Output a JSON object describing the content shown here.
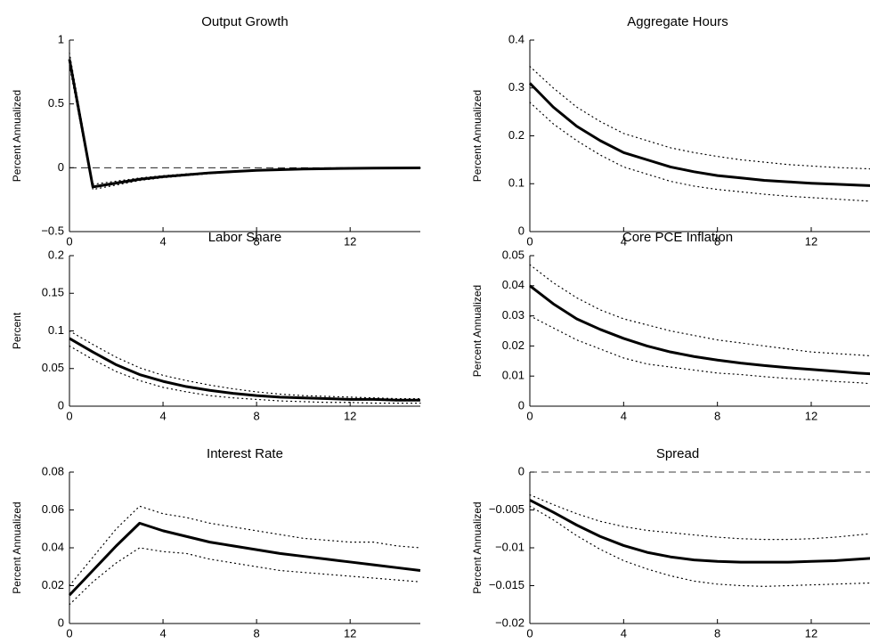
{
  "chart_data": [
    {
      "type": "line",
      "title": "Output Growth",
      "ylabel": "Percent Annualized",
      "x": [
        0,
        1,
        2,
        3,
        4,
        5,
        6,
        7,
        8,
        9,
        10,
        11,
        12,
        13,
        14,
        15
      ],
      "xlim": [
        0,
        15
      ],
      "xticks": [
        0,
        4,
        8,
        12
      ],
      "ylim": [
        -0.5,
        1
      ],
      "yticks": [
        {
          "value": -0.5,
          "label": "−0.5"
        },
        0,
        0.5,
        1
      ],
      "hlines": [
        0
      ],
      "series": [
        {
          "color": "#000000",
          "style": "dotted",
          "values": [
            0.9,
            -0.13,
            -0.105,
            -0.08,
            -0.062,
            -0.048,
            -0.036,
            -0.026,
            -0.018,
            -0.013,
            -0.009,
            -0.006,
            -0.004,
            -0.002,
            -0.001,
            0
          ]
        },
        {
          "color": "#000000",
          "style": "dotted",
          "values": [
            0.8,
            -0.17,
            -0.135,
            -0.1,
            -0.078,
            -0.062,
            -0.046,
            -0.034,
            -0.024,
            -0.018,
            -0.012,
            -0.009,
            -0.006,
            -0.004,
            -0.003,
            -0.002
          ]
        },
        {
          "color": "#000000",
          "style": "solid",
          "values": [
            0.85,
            -0.15,
            -0.12,
            -0.09,
            -0.07,
            -0.055,
            -0.04,
            -0.03,
            -0.02,
            -0.015,
            -0.01,
            -0.007,
            -0.005,
            -0.003,
            -0.002,
            -0.001
          ]
        }
      ]
    },
    {
      "type": "line",
      "title": "Aggregate Hours",
      "ylabel": "Percent Annualized",
      "x": [
        0,
        1,
        2,
        3,
        4,
        5,
        6,
        7,
        8,
        9,
        10,
        11,
        12,
        13,
        14,
        15
      ],
      "xlim": [
        0,
        15
      ],
      "xticks": [
        0,
        4,
        8,
        12
      ],
      "ylim": [
        0,
        0.4
      ],
      "yticks": [
        0,
        0.1,
        0.2,
        0.3,
        0.4
      ],
      "hlines": [],
      "series": [
        {
          "color": "#000000",
          "style": "dotted",
          "values": [
            0.345,
            0.3,
            0.26,
            0.23,
            0.205,
            0.19,
            0.175,
            0.165,
            0.157,
            0.15,
            0.145,
            0.14,
            0.137,
            0.134,
            0.132,
            0.13
          ]
        },
        {
          "color": "#000000",
          "style": "dotted",
          "values": [
            0.27,
            0.225,
            0.19,
            0.16,
            0.135,
            0.12,
            0.105,
            0.095,
            0.088,
            0.083,
            0.078,
            0.074,
            0.071,
            0.068,
            0.065,
            0.062
          ]
        },
        {
          "color": "#000000",
          "style": "solid",
          "values": [
            0.31,
            0.26,
            0.22,
            0.19,
            0.165,
            0.15,
            0.135,
            0.125,
            0.117,
            0.112,
            0.107,
            0.104,
            0.101,
            0.099,
            0.097,
            0.095
          ]
        }
      ]
    },
    {
      "type": "line",
      "title": "Labor Share",
      "ylabel": "Percent",
      "x": [
        0,
        1,
        2,
        3,
        4,
        5,
        6,
        7,
        8,
        9,
        10,
        11,
        12,
        13,
        14,
        15
      ],
      "xlim": [
        0,
        15
      ],
      "xticks": [
        0,
        4,
        8,
        12
      ],
      "ylim": [
        0,
        0.2
      ],
      "yticks": [
        0,
        0.05,
        0.1,
        0.15,
        0.2
      ],
      "hlines": [],
      "series": [
        {
          "color": "#000000",
          "style": "dotted",
          "values": [
            0.1,
            0.082,
            0.065,
            0.051,
            0.041,
            0.034,
            0.028,
            0.023,
            0.019,
            0.016,
            0.014,
            0.013,
            0.012,
            0.011,
            0.01,
            0.01
          ]
        },
        {
          "color": "#000000",
          "style": "dotted",
          "values": [
            0.08,
            0.062,
            0.046,
            0.034,
            0.025,
            0.019,
            0.014,
            0.011,
            0.009,
            0.007,
            0.006,
            0.005,
            0.005,
            0.004,
            0.004,
            0.004
          ]
        },
        {
          "color": "#000000",
          "style": "solid",
          "values": [
            0.09,
            0.072,
            0.055,
            0.042,
            0.033,
            0.026,
            0.021,
            0.017,
            0.014,
            0.012,
            0.011,
            0.01,
            0.009,
            0.009,
            0.008,
            0.008
          ]
        }
      ]
    },
    {
      "type": "line",
      "title": "Core PCE Inflation",
      "ylabel": "Percent Annualized",
      "x": [
        0,
        1,
        2,
        3,
        4,
        5,
        6,
        7,
        8,
        9,
        10,
        11,
        12,
        13,
        14,
        15
      ],
      "xlim": [
        0,
        15
      ],
      "xticks": [
        0,
        4,
        8,
        12
      ],
      "ylim": [
        0,
        0.05
      ],
      "yticks": [
        0,
        0.01,
        0.02,
        0.03,
        0.04,
        0.05
      ],
      "hlines": [],
      "series": [
        {
          "color": "#000000",
          "style": "dotted",
          "values": [
            0.047,
            0.041,
            0.036,
            0.032,
            0.029,
            0.027,
            0.025,
            0.0235,
            0.022,
            0.021,
            0.02,
            0.019,
            0.018,
            0.0175,
            0.017,
            0.0165
          ]
        },
        {
          "color": "#000000",
          "style": "dotted",
          "values": [
            0.03,
            0.026,
            0.022,
            0.019,
            0.016,
            0.014,
            0.013,
            0.012,
            0.011,
            0.0105,
            0.0098,
            0.0092,
            0.0088,
            0.0082,
            0.0078,
            0.0072
          ]
        },
        {
          "color": "#000000",
          "style": "solid",
          "values": [
            0.04,
            0.034,
            0.029,
            0.0255,
            0.0225,
            0.02,
            0.018,
            0.0165,
            0.0153,
            0.0143,
            0.0135,
            0.0128,
            0.0122,
            0.0116,
            0.011,
            0.0105
          ]
        }
      ]
    },
    {
      "type": "line",
      "title": "Interest Rate",
      "ylabel": "Percent Annualized",
      "x": [
        0,
        1,
        2,
        3,
        4,
        5,
        6,
        7,
        8,
        9,
        10,
        11,
        12,
        13,
        14,
        15
      ],
      "xlim": [
        0,
        15
      ],
      "xticks": [
        0,
        4,
        8,
        12
      ],
      "ylim": [
        0,
        0.08
      ],
      "yticks": [
        0,
        0.02,
        0.04,
        0.06,
        0.08
      ],
      "hlines": [
        0
      ],
      "series": [
        {
          "color": "#000000",
          "style": "dotted",
          "values": [
            0.02,
            0.035,
            0.05,
            0.062,
            0.058,
            0.056,
            0.053,
            0.051,
            0.049,
            0.047,
            0.045,
            0.044,
            0.043,
            0.043,
            0.041,
            0.04
          ]
        },
        {
          "color": "#000000",
          "style": "dotted",
          "values": [
            0.01,
            0.022,
            0.032,
            0.04,
            0.038,
            0.037,
            0.034,
            0.032,
            0.03,
            0.028,
            0.027,
            0.026,
            0.025,
            0.024,
            0.023,
            0.022
          ]
        },
        {
          "color": "#000000",
          "style": "solid",
          "values": [
            0.015,
            0.028,
            0.041,
            0.053,
            0.049,
            0.046,
            0.043,
            0.041,
            0.039,
            0.037,
            0.0355,
            0.034,
            0.0325,
            0.031,
            0.0295,
            0.028
          ]
        }
      ]
    },
    {
      "type": "line",
      "title": "Spread",
      "ylabel": "Percent Annualized",
      "x": [
        0,
        1,
        2,
        3,
        4,
        5,
        6,
        7,
        8,
        9,
        10,
        11,
        12,
        13,
        14,
        15
      ],
      "xlim": [
        0,
        15
      ],
      "xticks": [
        0,
        4,
        8,
        12
      ],
      "ylim": [
        -0.02,
        0
      ],
      "yticks": [
        {
          "value": -0.02,
          "label": "−0.02"
        },
        {
          "value": -0.015,
          "label": "−0.015"
        },
        {
          "value": -0.01,
          "label": "−0.01"
        },
        {
          "value": -0.005,
          "label": "−0.005"
        },
        0
      ],
      "hlines": [
        0
      ],
      "series": [
        {
          "color": "#000000",
          "style": "dotted",
          "values": [
            -0.003,
            -0.0043,
            -0.0055,
            -0.0065,
            -0.0072,
            -0.0077,
            -0.008,
            -0.0083,
            -0.0086,
            -0.0088,
            -0.0089,
            -0.0089,
            -0.0088,
            -0.0086,
            -0.0083,
            -0.008
          ]
        },
        {
          "color": "#000000",
          "style": "dotted",
          "values": [
            -0.0045,
            -0.0063,
            -0.0084,
            -0.0102,
            -0.0117,
            -0.0128,
            -0.0137,
            -0.0144,
            -0.0148,
            -0.015,
            -0.0151,
            -0.015,
            -0.0149,
            -0.0148,
            -0.0147,
            -0.0146
          ]
        },
        {
          "color": "#000000",
          "style": "solid",
          "values": [
            -0.0037,
            -0.0053,
            -0.007,
            -0.0085,
            -0.0097,
            -0.0106,
            -0.0112,
            -0.0116,
            -0.0118,
            -0.0119,
            -0.0119,
            -0.0119,
            -0.0118,
            -0.0117,
            -0.0115,
            -0.0113
          ]
        }
      ]
    }
  ]
}
